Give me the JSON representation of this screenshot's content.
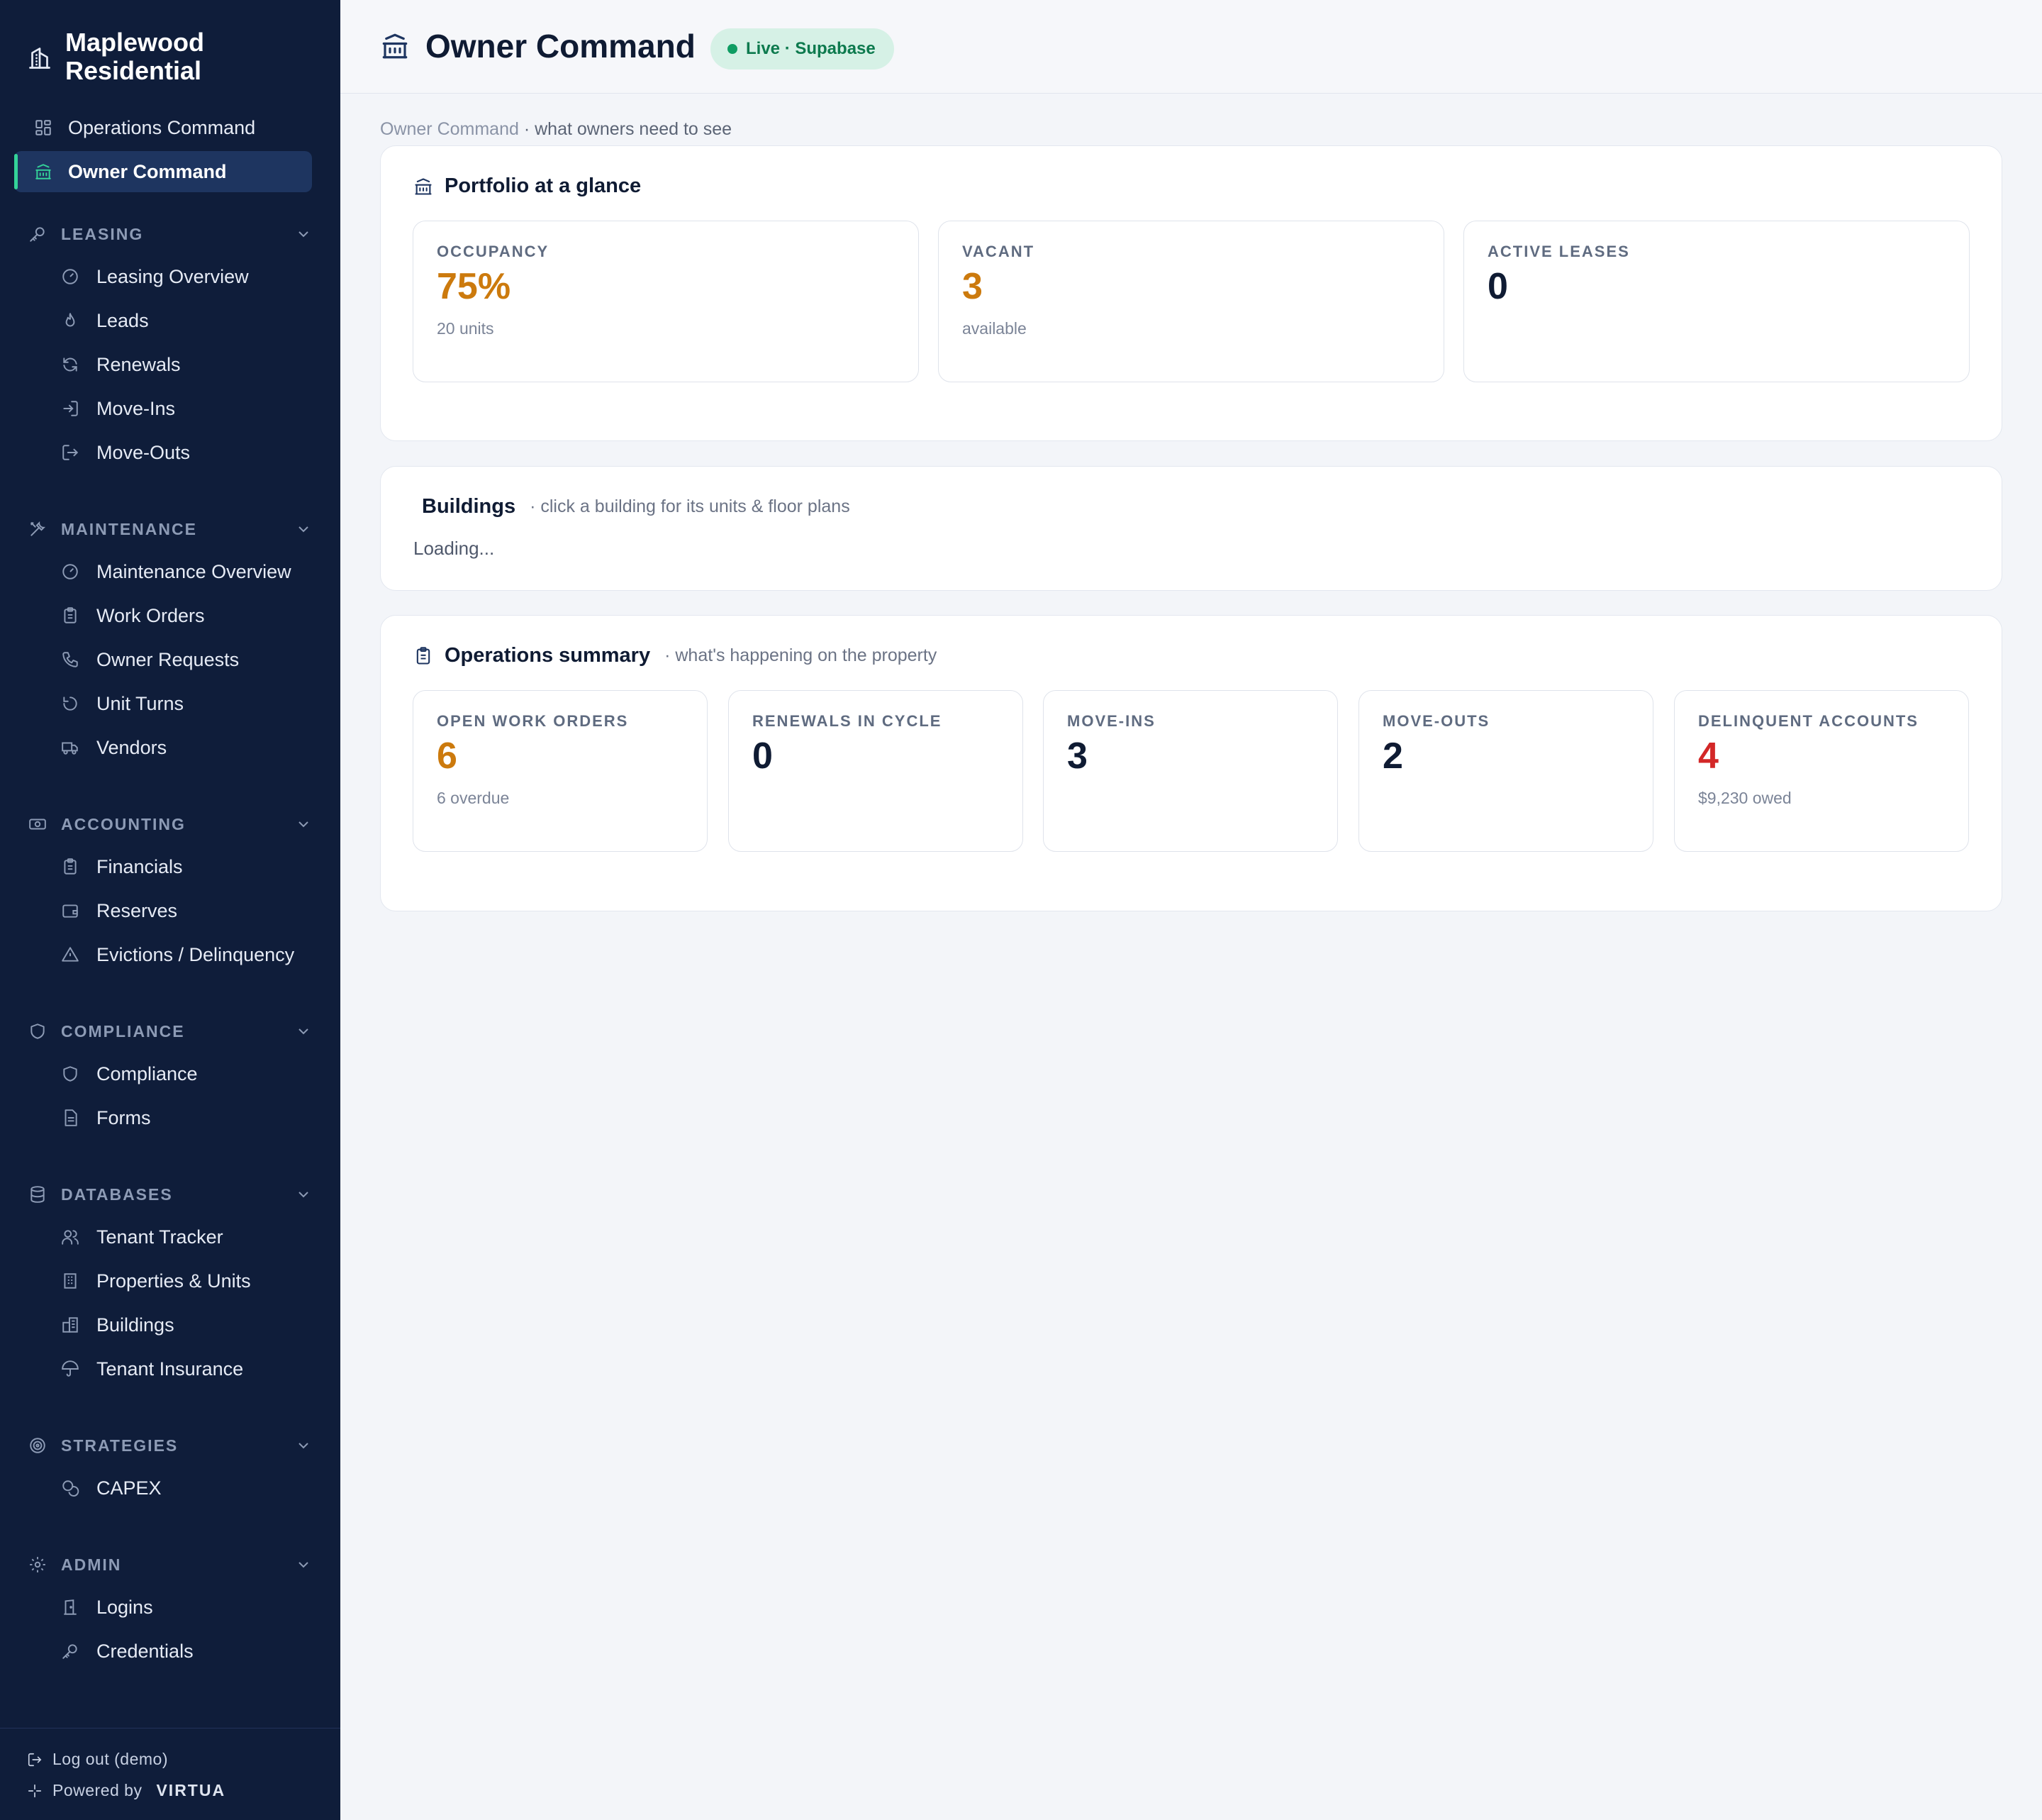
{
  "sidebar": {
    "brand": {
      "name": "Maplewood Residential",
      "icon": "building-icon"
    },
    "top_items": [
      {
        "label": "Operations Command",
        "icon": "grid-icon",
        "active": false
      },
      {
        "label": "Owner Command",
        "icon": "bank-icon",
        "active": true
      }
    ],
    "sections": [
      {
        "title": "LEASING",
        "icon": "key-icon",
        "items": [
          {
            "label": "Leasing Overview",
            "icon": "gauge-icon"
          },
          {
            "label": "Leads",
            "icon": "flame-icon"
          },
          {
            "label": "Renewals",
            "icon": "refresh-icon"
          },
          {
            "label": "Move-Ins",
            "icon": "log-in-icon"
          },
          {
            "label": "Move-Outs",
            "icon": "log-out-icon"
          }
        ]
      },
      {
        "title": "MAINTENANCE",
        "icon": "tools-icon",
        "items": [
          {
            "label": "Maintenance Overview",
            "icon": "gauge-icon"
          },
          {
            "label": "Work Orders",
            "icon": "clipboard-icon"
          },
          {
            "label": "Owner Requests",
            "icon": "phone-icon"
          },
          {
            "label": "Unit Turns",
            "icon": "rotate-icon"
          },
          {
            "label": "Vendors",
            "icon": "truck-icon"
          }
        ]
      },
      {
        "title": "ACCOUNTING",
        "icon": "banknote-icon",
        "items": [
          {
            "label": "Financials",
            "icon": "clipboard-icon"
          },
          {
            "label": "Reserves",
            "icon": "wallet-icon"
          },
          {
            "label": "Evictions / Delinquency",
            "icon": "warning-icon"
          }
        ]
      },
      {
        "title": "COMPLIANCE",
        "icon": "shield-icon",
        "items": [
          {
            "label": "Compliance",
            "icon": "shield-icon"
          },
          {
            "label": "Forms",
            "icon": "document-icon"
          }
        ]
      },
      {
        "title": "DATABASES",
        "icon": "database-icon",
        "items": [
          {
            "label": "Tenant Tracker",
            "icon": "users-icon"
          },
          {
            "label": "Properties & Units",
            "icon": "building-icon"
          },
          {
            "label": "Buildings",
            "icon": "buildings-icon"
          },
          {
            "label": "Tenant Insurance",
            "icon": "umbrella-icon"
          }
        ]
      },
      {
        "title": "STRATEGIES",
        "icon": "target-icon",
        "items": [
          {
            "label": "CAPEX",
            "icon": "coins-icon"
          }
        ]
      },
      {
        "title": "ADMIN",
        "icon": "gear-icon",
        "items": [
          {
            "label": "Logins",
            "icon": "door-icon"
          },
          {
            "label": "Credentials",
            "icon": "key-icon"
          }
        ]
      }
    ],
    "footer": {
      "logout": "Log out (demo)",
      "powered_prefix": "Powered by",
      "powered_brand": "VIRTUA"
    }
  },
  "header": {
    "title": "Owner Command",
    "badge": "Live · Supabase"
  },
  "breadcrumb": {
    "page": "Owner Command",
    "desc": " · what owners need to see"
  },
  "portfolio": {
    "title": "Portfolio at a glance",
    "stats": [
      {
        "label": "OCCUPANCY",
        "value": "75%",
        "sub": "20 units",
        "tone": "amber"
      },
      {
        "label": "VACANT",
        "value": "3",
        "sub": "available",
        "tone": "amber"
      },
      {
        "label": "ACTIVE LEASES",
        "value": "0",
        "sub": "",
        "tone": "dark"
      }
    ]
  },
  "buildings": {
    "title": "Buildings",
    "subtitle": "· click a building for its units & floor plans",
    "loading": "Loading..."
  },
  "operations": {
    "title": "Operations summary",
    "subtitle": "· what's happening on the property",
    "stats": [
      {
        "label": "OPEN WORK ORDERS",
        "value": "6",
        "sub": "6 overdue",
        "tone": "amber"
      },
      {
        "label": "RENEWALS IN CYCLE",
        "value": "0",
        "sub": "",
        "tone": "dark"
      },
      {
        "label": "MOVE-INS",
        "value": "3",
        "sub": "",
        "tone": "dark"
      },
      {
        "label": "MOVE-OUTS",
        "value": "2",
        "sub": "",
        "tone": "dark"
      },
      {
        "label": "DELINQUENT ACCOUNTS",
        "value": "4",
        "sub": "$9,230 owed",
        "tone": "red"
      }
    ]
  },
  "colors": {
    "sidebar_bg": "#0f1d3a",
    "active_item_bg": "#1e3560",
    "accent_green": "#34d399",
    "amber": "#cc7a0d",
    "red": "#d32727",
    "badge_bg": "#d6f1e6",
    "badge_text": "#0d7a4e"
  }
}
